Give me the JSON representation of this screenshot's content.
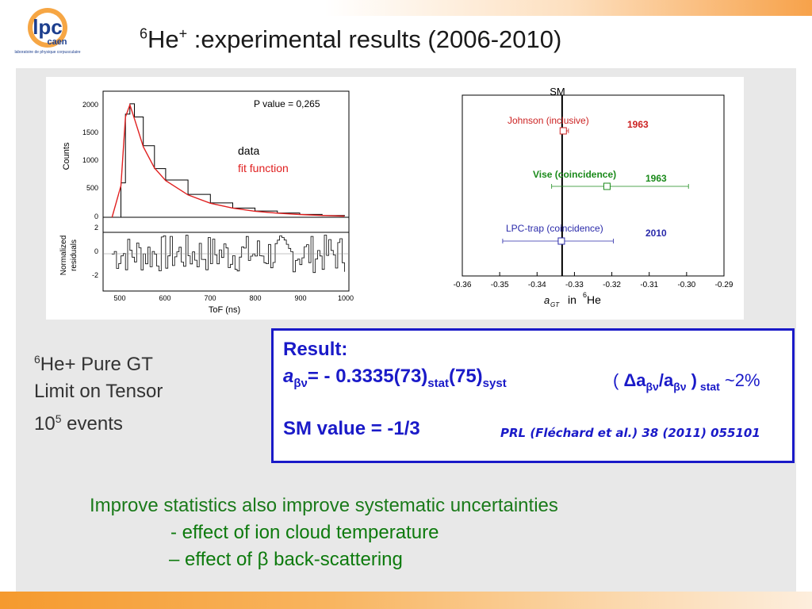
{
  "slide": {
    "title_sup": "6",
    "title_he": "He",
    "title_plus": "+",
    "title_rest": " :experimental results (2006-2010)",
    "logo_text": "lpc",
    "logo_sub": "caen",
    "logo_caption": "laboratoire de physique corpusculaire"
  },
  "tof_plot": {
    "legend_p": "P value = 0,265",
    "legend_data": "data",
    "legend_fit": "fit function",
    "ylabel_top": "Counts",
    "ylabel_bottom_1": "Normalized",
    "ylabel_bottom_2": "residuals",
    "xlabel": "ToF (ns)",
    "yticks_top": [
      "0",
      "500",
      "1000",
      "1500",
      "2000"
    ],
    "yticks_bottom": [
      "2",
      "0",
      "-2"
    ],
    "xticks": [
      "500",
      "600",
      "700",
      "800",
      "900",
      "1000"
    ]
  },
  "comparison_plot": {
    "sm_label": "SM",
    "xticks": [
      "-0.36",
      "-0.35",
      "-0.34",
      "-0.33",
      "-0.32",
      "-0.31",
      "-0.30",
      "-0.29"
    ],
    "xlabel_var": "a",
    "xlabel_sub": "GT",
    "xlabel_in": "in ",
    "xlabel_sup": "6",
    "xlabel_he": "He",
    "entries": [
      {
        "label": "Johnson (inclusive)",
        "year": "1963",
        "color": "#cc2222"
      },
      {
        "label": "Vise (coincidence)",
        "year": "1963",
        "color": "#1a8a1a"
      },
      {
        "label": "LPC-trap (coincidence)",
        "year": "2010",
        "color": "#2a2aaa"
      }
    ]
  },
  "chart_data": [
    {
      "type": "line",
      "xlabel": "ToF (ns)",
      "ylabel": "Counts",
      "xlim": [
        460,
        1010
      ],
      "ylim": [
        0,
        2200
      ],
      "series": [
        {
          "name": "data",
          "x": [
            480,
            500,
            510,
            520,
            530,
            550,
            575,
            600,
            650,
            700,
            750,
            800,
            850,
            900,
            950,
            1000
          ],
          "values": [
            0,
            600,
            1800,
            1980,
            1750,
            1250,
            850,
            650,
            400,
            250,
            160,
            110,
            75,
            50,
            30,
            20
          ]
        },
        {
          "name": "fit function",
          "x": [
            480,
            500,
            510,
            520,
            530,
            550,
            575,
            600,
            650,
            700,
            750,
            800,
            850,
            900,
            950,
            1000
          ],
          "values": [
            0,
            550,
            1750,
            1960,
            1720,
            1230,
            860,
            640,
            390,
            245,
            160,
            105,
            72,
            48,
            32,
            20
          ]
        }
      ]
    },
    {
      "type": "scatter",
      "xlabel": "in 6He",
      "xlim": [
        -0.36,
        -0.29
      ],
      "sm_value": -0.3333,
      "points": [
        {
          "label": "Johnson (inclusive)",
          "year": "1963",
          "value": -0.333,
          "err_low": -0.3336,
          "err_high": -0.3316
        },
        {
          "label": "Vise (coincidence)",
          "year": "1963",
          "value": -0.3213,
          "err_low": -0.3361,
          "err_high": -0.2995
        },
        {
          "label": "LPC-trap (coincidence)",
          "year": "2010",
          "value": -0.3335,
          "err_low": -0.3492,
          "err_high": -0.3196
        }
      ]
    }
  ],
  "result": {
    "heading": "Result:",
    "a_letter": "a",
    "a_sub": "βν",
    "value_main": "= - 0.3335(73)",
    "stat_sub": "stat",
    "value_syst": "(75)",
    "syst_sub": "syst",
    "rel_open": "( ",
    "rel_delta": "Δa",
    "rel_sub1": "βν",
    "rel_slash": "/a",
    "rel_sub2": "βν",
    "rel_close": " )",
    "rel_stat": " stat",
    "rel_value": " ~2%",
    "sm_line": "SM value = -1/3",
    "reference": "PRL (Fléchard et al.) 38 (2011) 055101"
  },
  "notes": {
    "line1_sup": "6",
    "line1": "He+ Pure GT",
    "line2": "Limit on Tensor",
    "line3_base": "10",
    "line3_sup": "5",
    "line3_rest": " events"
  },
  "improve": {
    "line1": "Improve statistics  also improve systematic uncertainties",
    "line2": "- effect of ion cloud temperature",
    "line3": "– effect of β back-scattering"
  },
  "colors": {
    "result_blue": "#1a1ac8",
    "improve_green": "#1a7a1a",
    "fit_red": "#e02020"
  }
}
